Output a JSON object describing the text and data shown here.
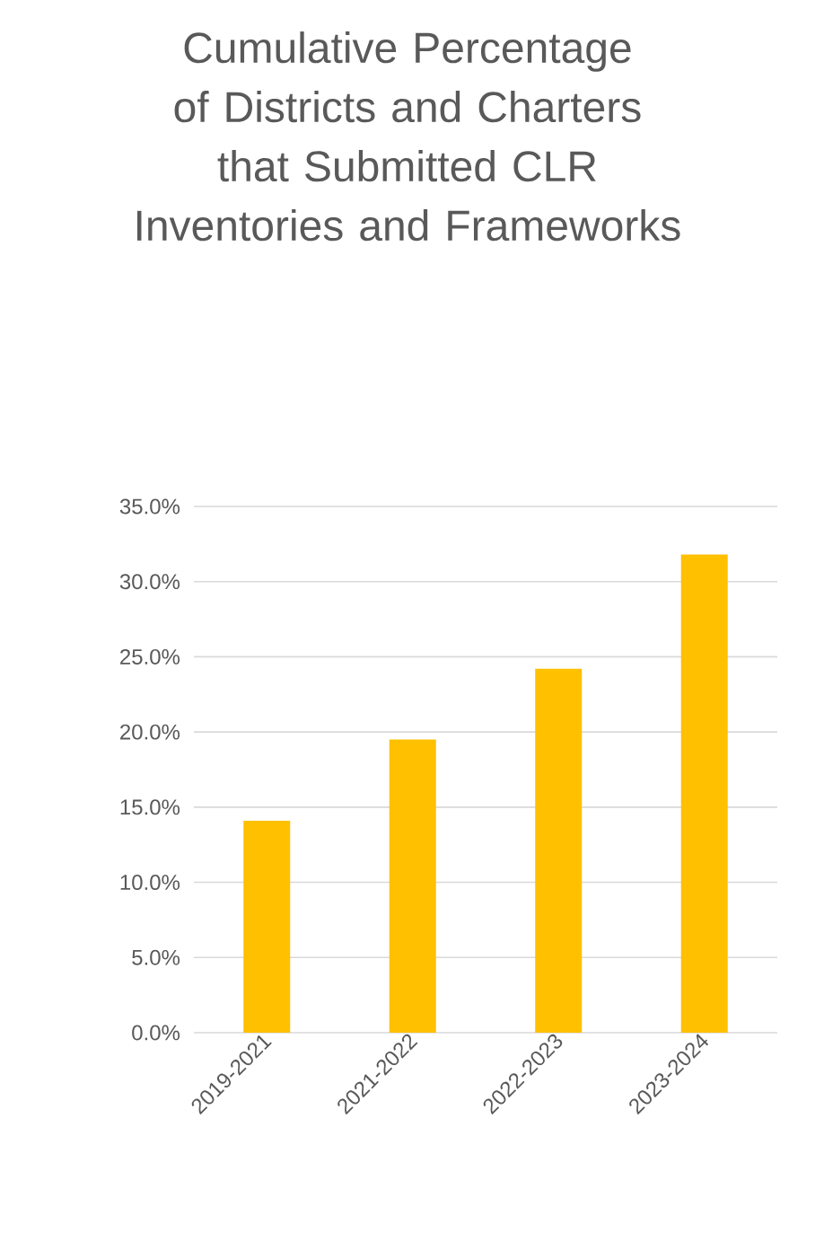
{
  "chart_data": {
    "type": "bar",
    "title": "Cumulative Percentage of Districts and Charters that Submitted CLR Inventories and Frameworks",
    "categories": [
      "2019-2021",
      "2021-2022",
      "2022-2023",
      "2023-2024"
    ],
    "values": [
      14.1,
      19.5,
      24.2,
      31.8
    ],
    "color": "#ffc000",
    "ylim": [
      0,
      35
    ],
    "yticks": [
      {
        "value": 0,
        "label": "0.0%"
      },
      {
        "value": 5,
        "label": "5.0%"
      },
      {
        "value": 10,
        "label": "10.0%"
      },
      {
        "value": 15,
        "label": "15.0%"
      },
      {
        "value": 20,
        "label": "20.0%"
      },
      {
        "value": 25,
        "label": "25.0%"
      },
      {
        "value": 30,
        "label": "30.0%"
      },
      {
        "value": 35,
        "label": "35.0%"
      }
    ],
    "grid": "y"
  }
}
